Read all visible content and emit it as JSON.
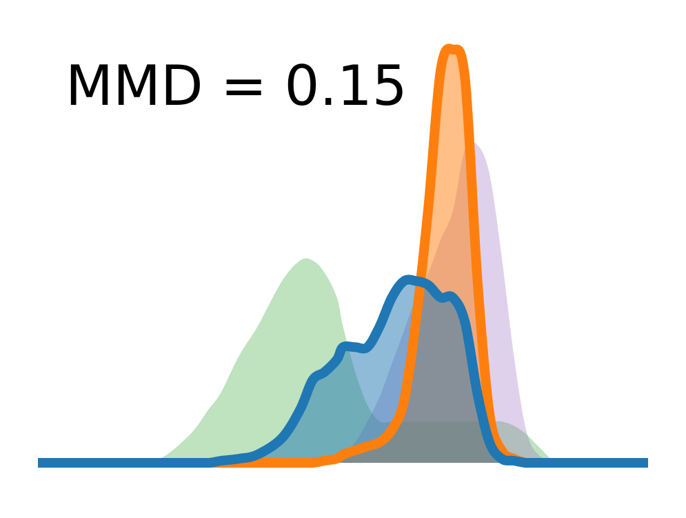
{
  "chart_data": {
    "type": "area",
    "title": "",
    "xlabel": "",
    "ylabel": "",
    "xlim": [
      0,
      1
    ],
    "ylim": [
      0,
      1
    ],
    "grid": false,
    "axes_visible": false,
    "annotation": "MMD = 0.15",
    "x": [
      0.0,
      0.1,
      0.15,
      0.2,
      0.25,
      0.28,
      0.3,
      0.33,
      0.36,
      0.4,
      0.43,
      0.45,
      0.47,
      0.49,
      0.5,
      0.52,
      0.54,
      0.56,
      0.58,
      0.6,
      0.62,
      0.64,
      0.66,
      0.68,
      0.7,
      0.72,
      0.74,
      0.76,
      0.78,
      0.8,
      0.82,
      0.85,
      0.88,
      1.0
    ],
    "series": [
      {
        "color": "#2ca02c",
        "fill_alpha": 0.3,
        "stroke": false,
        "values": [
          0,
          0,
          0,
          0.01,
          0.07,
          0.13,
          0.17,
          0.26,
          0.33,
          0.44,
          0.49,
          0.49,
          0.46,
          0.4,
          0.33,
          0.22,
          0.14,
          0.1,
          0.1,
          0.1,
          0.1,
          0.1,
          0.1,
          0.1,
          0.1,
          0.1,
          0.1,
          0.1,
          0.09,
          0.07,
          0.04,
          0,
          0,
          0
        ]
      },
      {
        "color": "#9467bd",
        "fill_alpha": 0.3,
        "stroke": false,
        "values": [
          0,
          0,
          0,
          0,
          0,
          0,
          0,
          0,
          0,
          0,
          0,
          0,
          0,
          0.01,
          0.02,
          0.05,
          0.1,
          0.16,
          0.24,
          0.32,
          0.4,
          0.46,
          0.54,
          0.61,
          0.76,
          0.77,
          0.7,
          0.5,
          0.26,
          0.08,
          0.02,
          0,
          0,
          0
        ]
      },
      {
        "color": "#ff7f0e",
        "fill_alpha": 0.5,
        "stroke": true,
        "values": [
          0,
          0,
          0,
          0,
          0,
          0,
          0,
          0,
          0,
          0,
          0,
          0,
          0.005,
          0.01,
          0.02,
          0.03,
          0.04,
          0.05,
          0.08,
          0.15,
          0.35,
          0.62,
          0.95,
          1.0,
          0.93,
          0.45,
          0.12,
          0.03,
          0.01,
          0,
          0,
          0,
          0,
          0
        ]
      },
      {
        "color": "#1f77b4",
        "fill_alpha": 0.5,
        "stroke": true,
        "values": [
          0,
          0,
          0,
          0,
          0,
          0,
          0.005,
          0.01,
          0.02,
          0.06,
          0.13,
          0.2,
          0.22,
          0.25,
          0.28,
          0.28,
          0.28,
          0.33,
          0.4,
          0.44,
          0.44,
          0.43,
          0.4,
          0.4,
          0.34,
          0.17,
          0.05,
          0.01,
          0.005,
          0,
          0,
          0,
          0,
          0
        ]
      }
    ]
  }
}
